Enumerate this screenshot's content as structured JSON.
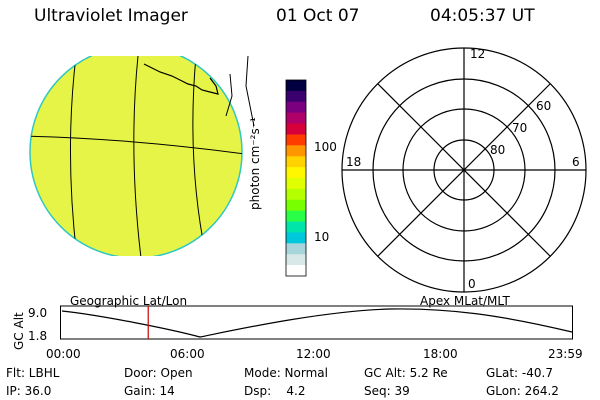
{
  "header": {
    "title": "Ultraviolet Imager",
    "date": "01 Oct 07",
    "time": "04:05:37 UT"
  },
  "colorbar": {
    "unit_label": "photon cm⁻²s⁻¹",
    "ticks": [
      "100",
      "10"
    ],
    "colors": [
      "#000040",
      "#3a006e",
      "#7a0080",
      "#b0006a",
      "#d8003a",
      "#ff3c00",
      "#ff9600",
      "#ffd200",
      "#fff700",
      "#e0ff00",
      "#b4ff00",
      "#78ff00",
      "#28ff46",
      "#00e6aa",
      "#00c8dc",
      "#a8d4dc",
      "#d8e8e8",
      "#ffffff"
    ]
  },
  "globe_view": {
    "label": "Geographic Lat/Lon",
    "fill_color": "#e8f545"
  },
  "polar_view": {
    "label": "Apex MLat/MLT",
    "mlt_labels": {
      "top": "12",
      "left": "18",
      "right": "6",
      "bottom": "0"
    },
    "lat_labels": [
      "60",
      "70",
      "80"
    ]
  },
  "orbit_plot": {
    "ylabel": "GC Alt",
    "yticks": [
      "9.0",
      "1.8"
    ],
    "xticks": [
      "00:00",
      "06:00",
      "12:00",
      "18:00",
      "23:59"
    ],
    "marker_time": "04:05:37",
    "marker_color": "#cc0000"
  },
  "status": {
    "flt": "Flt: LBHL",
    "ip": "IP: 36.0",
    "door": "Door: Open",
    "gain": "Gain: 14",
    "mode": "Mode: Normal",
    "dsp": "Dsp:    4.2",
    "gc_alt": "GC Alt: 5.2 Re",
    "seq": "Seq: 39",
    "glat": "GLat: -40.7",
    "glon": "GLon: 264.2"
  }
}
